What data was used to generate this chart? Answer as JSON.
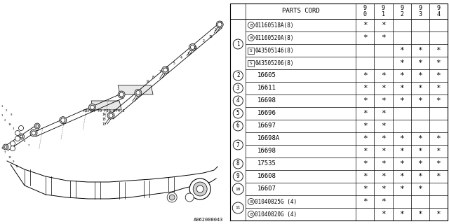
{
  "bg_color": "#ffffff",
  "rows": [
    {
      "num": "1",
      "parts": [
        {
          "prefix": "B",
          "code": "01160518A(8)",
          "marks": [
            true,
            true,
            false,
            false,
            false
          ]
        },
        {
          "prefix": "B",
          "code": "01160520A(8)",
          "marks": [
            true,
            true,
            false,
            false,
            false
          ]
        },
        {
          "prefix": "S",
          "code": "043505146(8)",
          "marks": [
            false,
            false,
            true,
            true,
            true
          ]
        },
        {
          "prefix": "S",
          "code": "043505206(8)",
          "marks": [
            false,
            false,
            true,
            true,
            true
          ]
        }
      ]
    },
    {
      "num": "2",
      "parts": [
        {
          "prefix": "",
          "code": "16605",
          "marks": [
            true,
            true,
            true,
            true,
            true
          ]
        }
      ]
    },
    {
      "num": "3",
      "parts": [
        {
          "prefix": "",
          "code": "16611",
          "marks": [
            true,
            true,
            true,
            true,
            true
          ]
        }
      ]
    },
    {
      "num": "4",
      "parts": [
        {
          "prefix": "",
          "code": "16698",
          "marks": [
            true,
            true,
            true,
            true,
            true
          ]
        }
      ]
    },
    {
      "num": "5",
      "parts": [
        {
          "prefix": "",
          "code": "16696",
          "marks": [
            true,
            true,
            false,
            false,
            false
          ]
        }
      ]
    },
    {
      "num": "6",
      "parts": [
        {
          "prefix": "",
          "code": "16697",
          "marks": [
            true,
            true,
            false,
            false,
            false
          ]
        }
      ]
    },
    {
      "num": "7",
      "parts": [
        {
          "prefix": "",
          "code": "16698A",
          "marks": [
            true,
            true,
            true,
            true,
            true
          ]
        },
        {
          "prefix": "",
          "code": "16698",
          "marks": [
            true,
            true,
            true,
            true,
            true
          ]
        }
      ]
    },
    {
      "num": "8",
      "parts": [
        {
          "prefix": "",
          "code": "17535",
          "marks": [
            true,
            true,
            true,
            true,
            true
          ]
        }
      ]
    },
    {
      "num": "9",
      "parts": [
        {
          "prefix": "",
          "code": "16608",
          "marks": [
            true,
            true,
            true,
            true,
            true
          ]
        }
      ]
    },
    {
      "num": "10",
      "parts": [
        {
          "prefix": "",
          "code": "16607",
          "marks": [
            true,
            true,
            true,
            true,
            false
          ]
        }
      ]
    },
    {
      "num": "11",
      "parts": [
        {
          "prefix": "B",
          "code": "01040825G (4)",
          "marks": [
            true,
            true,
            false,
            false,
            false
          ]
        },
        {
          "prefix": "B",
          "code": "01040820G (4)",
          "marks": [
            false,
            true,
            true,
            true,
            true
          ]
        }
      ]
    }
  ],
  "footnote": "A062000043",
  "years": [
    "9\n0",
    "9\n1",
    "9\n2",
    "9\n3",
    "9\n4"
  ],
  "refer_text": "REFER TO FIG.074-1",
  "left_diagram": {
    "upper_rail": {
      "line1": [
        [
          160,
          295,
          268,
          230
        ],
        [
          154,
          289,
          262,
          225
        ]
      ],
      "nodes_x": [
        164,
        182,
        200,
        218,
        236,
        254,
        268
      ],
      "nodes_y": [
        228,
        236,
        244,
        251,
        258,
        264,
        270
      ]
    },
    "lower_rail": {
      "line1": [
        [
          60,
          185,
          148,
          148
        ],
        [
          55,
          180,
          143,
          143
        ]
      ],
      "nodes_x": [
        64,
        82,
        100,
        118,
        136,
        148
      ],
      "nodes_y": [
        152,
        158,
        165,
        172,
        178,
        184
      ]
    },
    "manifold_x": [
      5,
      30,
      60,
      90,
      120,
      150,
      180,
      210,
      240,
      270,
      295,
      310
    ],
    "manifold_y": [
      90,
      75,
      62,
      55,
      55,
      57,
      60,
      63,
      65,
      68,
      72,
      78
    ],
    "runners_x": [
      30,
      65,
      100,
      135,
      175,
      215,
      250
    ],
    "runners_y": [
      75,
      62,
      55,
      55,
      57,
      60,
      65
    ],
    "throttle": [
      275,
      65,
      14
    ]
  }
}
